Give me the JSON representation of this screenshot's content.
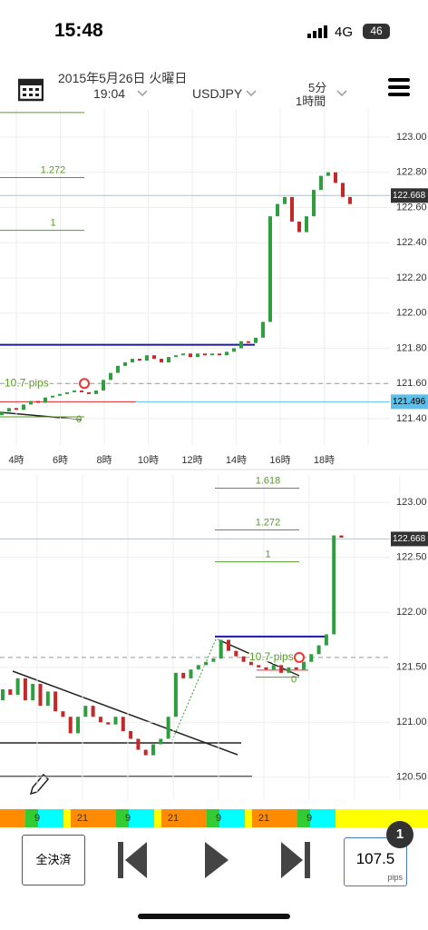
{
  "status": {
    "time": "15:48",
    "network": "4G",
    "battery": "46"
  },
  "header": {
    "date": "2015年5月26日 火曜日",
    "time": "19:04",
    "symbol": "USDJPY",
    "period1": "5分",
    "period2": "1時間"
  },
  "top_chart": {
    "type": "candlestick",
    "ylim": [
      121.25,
      123.16
    ],
    "yticks": [
      {
        "value": 123.0,
        "label": "123.00"
      },
      {
        "value": 122.8,
        "label": "122.80"
      },
      {
        "value": 122.6,
        "label": "122.60"
      },
      {
        "value": 122.4,
        "label": "122.40"
      },
      {
        "value": 122.2,
        "label": "122.20"
      },
      {
        "value": 122.0,
        "label": "122.00"
      },
      {
        "value": 121.8,
        "label": "121.80"
      },
      {
        "value": 121.6,
        "label": "121.60"
      },
      {
        "value": 121.4,
        "label": "121.40"
      }
    ],
    "xlabels": [
      "4時",
      "6時",
      "8時",
      "10時",
      "12時",
      "14時",
      "16時",
      "18時"
    ],
    "current_price": 122.668,
    "entry_price": 121.496,
    "fib_levels": [
      {
        "label": null,
        "price": 123.14
      },
      {
        "label": "1.272",
        "price": 122.77
      },
      {
        "label": "1",
        "price": 122.47
      },
      {
        "label": "0",
        "price": 121.41
      }
    ],
    "resistance": 121.82,
    "dashed": 121.6,
    "pips_label": "10.7 pips",
    "candles": [
      [
        121.42,
        121.44
      ],
      [
        121.44,
        121.46
      ],
      [
        121.46,
        121.45
      ],
      [
        121.45,
        121.48
      ],
      [
        121.48,
        121.5
      ],
      [
        121.5,
        121.49
      ],
      [
        121.49,
        121.52
      ],
      [
        121.52,
        121.53
      ],
      [
        121.53,
        121.54
      ],
      [
        121.54,
        121.55
      ],
      [
        121.55,
        121.56
      ],
      [
        121.56,
        121.55
      ],
      [
        121.55,
        121.54
      ],
      [
        121.54,
        121.56
      ],
      [
        121.56,
        121.62
      ],
      [
        121.62,
        121.66
      ],
      [
        121.66,
        121.7
      ],
      [
        121.7,
        121.72
      ],
      [
        121.72,
        121.74
      ],
      [
        121.74,
        121.73
      ],
      [
        121.73,
        121.76
      ],
      [
        121.76,
        121.74
      ],
      [
        121.74,
        121.72
      ],
      [
        121.72,
        121.75
      ],
      [
        121.75,
        121.76
      ],
      [
        121.76,
        121.77
      ],
      [
        121.77,
        121.75
      ],
      [
        121.75,
        121.77
      ],
      [
        121.77,
        121.76
      ],
      [
        121.76,
        121.77
      ],
      [
        121.77,
        121.76
      ],
      [
        121.76,
        121.78
      ],
      [
        121.78,
        121.8
      ],
      [
        121.8,
        121.84
      ],
      [
        121.84,
        121.83
      ],
      [
        121.83,
        121.86
      ],
      [
        121.86,
        121.95
      ],
      [
        121.95,
        122.55
      ],
      [
        122.55,
        122.62
      ],
      [
        122.62,
        122.66
      ],
      [
        122.66,
        122.52
      ],
      [
        122.52,
        122.46
      ],
      [
        122.46,
        122.55
      ],
      [
        122.55,
        122.7
      ],
      [
        122.7,
        122.78
      ],
      [
        122.78,
        122.8
      ],
      [
        122.8,
        122.74
      ],
      [
        122.74,
        122.66
      ],
      [
        122.66,
        122.62
      ]
    ]
  },
  "bottom_chart": {
    "type": "candlestick",
    "ylim": [
      120.3,
      123.25
    ],
    "yticks": [
      {
        "value": 123.0,
        "label": "123.00"
      },
      {
        "value": 122.5,
        "label": "122.50"
      },
      {
        "value": 122.0,
        "label": "122.00"
      },
      {
        "value": 121.5,
        "label": "121.50"
      },
      {
        "value": 121.0,
        "label": "121.00"
      },
      {
        "value": 120.5,
        "label": "120.50"
      }
    ],
    "xlabels": [
      "9",
      "21",
      "9",
      "21",
      "9",
      "21",
      "9"
    ],
    "current_price": 122.668,
    "fib_levels": [
      {
        "label": "1.618",
        "price": 123.13
      },
      {
        "label": "1.272",
        "price": 122.75
      },
      {
        "label": "1",
        "price": 122.46
      },
      {
        "label": "0",
        "price": 121.41
      }
    ],
    "resistance": 121.78,
    "dashed": 121.59,
    "pips_label": "10.7 pips",
    "candles": [
      [
        121.2,
        121.3
      ],
      [
        121.3,
        121.25
      ],
      [
        121.25,
        121.4
      ],
      [
        121.4,
        121.2
      ],
      [
        121.2,
        121.35
      ],
      [
        121.35,
        121.15
      ],
      [
        121.15,
        121.28
      ],
      [
        121.28,
        121.1
      ],
      [
        121.1,
        121.05
      ],
      [
        121.05,
        120.9
      ],
      [
        120.9,
        121.05
      ],
      [
        121.05,
        121.15
      ],
      [
        121.15,
        121.05
      ],
      [
        121.05,
        121.0
      ],
      [
        121.0,
        120.98
      ],
      [
        120.98,
        121.05
      ],
      [
        121.05,
        120.92
      ],
      [
        120.92,
        120.85
      ],
      [
        120.85,
        120.75
      ],
      [
        120.75,
        120.7
      ],
      [
        120.7,
        120.8
      ],
      [
        120.8,
        120.85
      ],
      [
        120.85,
        121.05
      ],
      [
        121.05,
        121.45
      ],
      [
        121.45,
        121.4
      ],
      [
        121.4,
        121.48
      ],
      [
        121.48,
        121.52
      ],
      [
        121.52,
        121.55
      ],
      [
        121.55,
        121.58
      ],
      [
        121.58,
        121.75
      ],
      [
        121.75,
        121.65
      ],
      [
        121.65,
        121.6
      ],
      [
        121.6,
        121.55
      ],
      [
        121.55,
        121.52
      ],
      [
        121.52,
        121.5
      ],
      [
        121.5,
        121.48
      ],
      [
        121.48,
        121.52
      ],
      [
        121.52,
        121.45
      ],
      [
        121.45,
        121.5
      ],
      [
        121.5,
        121.48
      ],
      [
        121.48,
        121.55
      ],
      [
        121.55,
        121.62
      ],
      [
        121.62,
        121.7
      ],
      [
        121.7,
        121.8
      ],
      [
        121.8,
        122.7
      ],
      [
        122.7,
        122.68
      ]
    ]
  },
  "toolbar": {
    "close_all": "全決済",
    "pips_value": "107.5",
    "pips_unit": "pips",
    "badge": "1"
  }
}
